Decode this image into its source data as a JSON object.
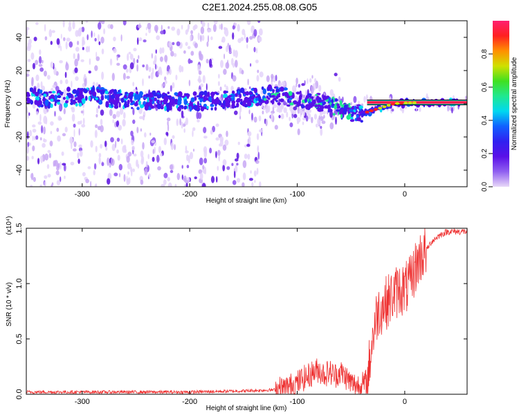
{
  "title": "C2E1.2024.255.08.08.G05",
  "chart_data": [
    {
      "type": "heatmap",
      "title": "C2E1.2024.255.08.08.G05",
      "xlabel": "Height of straight line (km)",
      "ylabel": "Frequency (Hz)",
      "xlim": [
        -352,
        58
      ],
      "ylim": [
        -50,
        50
      ],
      "xticks": [
        -300,
        -200,
        -100,
        0
      ],
      "yticks": [
        -40,
        -20,
        0,
        20,
        40
      ],
      "grid": false,
      "colorbar": {
        "label": "Normalized spectral amplitude",
        "range": [
          0.0,
          1.0
        ],
        "ticks": [
          "0.0",
          "0.2",
          "0.4",
          "0.6",
          "0.8"
        ],
        "colormap": [
          "#e8d8f8",
          "#9060f0",
          "#5a10e8",
          "#3020f0",
          "#1060ff",
          "#00d8f0",
          "#20e890",
          "#40e020",
          "#d0e000",
          "#ff9000",
          "#ff2020",
          "#ff2070"
        ]
      },
      "ridge": {
        "x": [
          -350,
          -330,
          -310,
          -290,
          -270,
          -250,
          -230,
          -200,
          -170,
          -140,
          -125,
          -110,
          -95,
          -80,
          -65,
          -50,
          -40,
          -30,
          -20,
          -10,
          0,
          20,
          40,
          58
        ],
        "y": [
          4,
          3,
          4,
          5,
          3,
          2,
          2,
          1,
          2,
          4,
          6,
          4,
          3,
          1,
          -2,
          -5,
          -6,
          -4,
          -2,
          0,
          0.5,
          0.8,
          0.8,
          0.8
        ]
      }
    },
    {
      "type": "line",
      "xlabel": "Height of straight line (km)",
      "ylabel": "SNR (10 * v/v)",
      "scale_label": "(x10⁴)",
      "xlim": [
        -352,
        58
      ],
      "ylim": [
        0.0,
        1.5
      ],
      "xticks": [
        -300,
        -200,
        -100,
        0
      ],
      "yticks": [
        "0.0",
        "0.5",
        "1.0",
        "1.5"
      ],
      "grid": false,
      "series": [
        {
          "color": "#ee3030",
          "x": [
            -350,
            -300,
            -250,
            -200,
            -150,
            -120,
            -110,
            -100,
            -95,
            -90,
            -85,
            -80,
            -75,
            -70,
            -65,
            -60,
            -55,
            -50,
            -45,
            -40,
            -35,
            -30,
            -28,
            -25,
            -20,
            -15,
            -10,
            -5,
            0,
            5,
            10,
            15,
            20,
            25,
            30,
            35,
            40,
            50,
            58
          ],
          "y": [
            0.02,
            0.02,
            0.02,
            0.02,
            0.03,
            0.04,
            0.06,
            0.1,
            0.14,
            0.16,
            0.2,
            0.22,
            0.18,
            0.2,
            0.17,
            0.2,
            0.16,
            0.1,
            0.08,
            0.08,
            0.12,
            0.5,
            0.62,
            0.75,
            0.8,
            0.85,
            0.9,
            0.95,
            0.95,
            1.0,
            1.15,
            1.25,
            1.3,
            1.38,
            1.42,
            1.45,
            1.47,
            1.47,
            1.47
          ]
        }
      ]
    }
  ]
}
